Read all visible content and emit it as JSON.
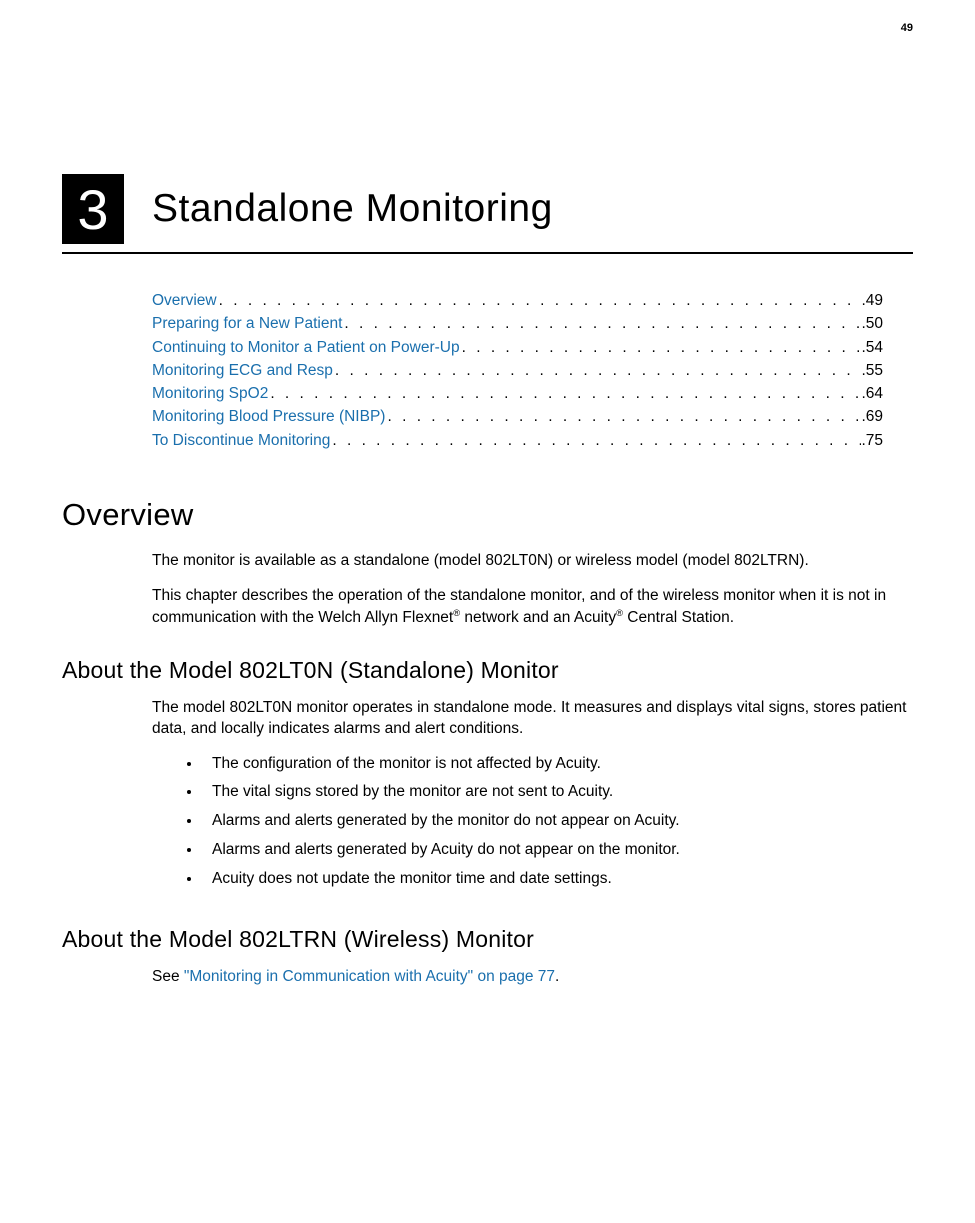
{
  "page_number": "49",
  "chapter": {
    "number": "3",
    "title": "Standalone Monitoring"
  },
  "toc": [
    {
      "label": "Overview",
      "page": "49"
    },
    {
      "label": "Preparing for a New Patient",
      "page": "50"
    },
    {
      "label": "Continuing to Monitor a Patient on Power-Up",
      "page": "54"
    },
    {
      "label": "Monitoring ECG and Resp",
      "page": "55"
    },
    {
      "label": "Monitoring SpO2",
      "page": "64"
    },
    {
      "label": "Monitoring Blood Pressure (NIBP)",
      "page": "69"
    },
    {
      "label": "To Discontinue Monitoring",
      "page": "75"
    }
  ],
  "sections": {
    "overview_heading": "Overview",
    "overview_p1": "The monitor is available as a standalone (model 802LT0N) or wireless model (model 802LTRN).",
    "overview_p2_prefix": "This chapter describes the operation of the standalone monitor, and of the wireless monitor when it is not in communication with the Welch Allyn Flexnet",
    "overview_p2_mid": " network and an Acuity",
    "overview_p2_suffix": " Central Station.",
    "reg_mark": "®",
    "about_standalone_heading": "About the Model 802LT0N (Standalone) Monitor",
    "about_standalone_p1": "The model 802LT0N monitor operates in standalone mode. It measures and displays vital signs, stores patient data, and locally indicates alarms and alert conditions.",
    "bullets": [
      "The configuration of the monitor is not affected by Acuity.",
      "The vital signs stored by the monitor are not sent to Acuity.",
      "Alarms and alerts generated by the monitor do not appear on Acuity.",
      "Alarms and alerts generated by Acuity do not appear on the monitor.",
      "Acuity does not update the monitor time and date settings."
    ],
    "about_wireless_heading": "About the Model 802LTRN (Wireless) Monitor",
    "wireless_p_prefix": "See ",
    "wireless_link": "\"Monitoring in Communication with Acuity\" on page 77",
    "wireless_p_suffix": "."
  },
  "colors": {
    "link": "#1a6fad",
    "text": "#000000",
    "bg": "#ffffff"
  }
}
